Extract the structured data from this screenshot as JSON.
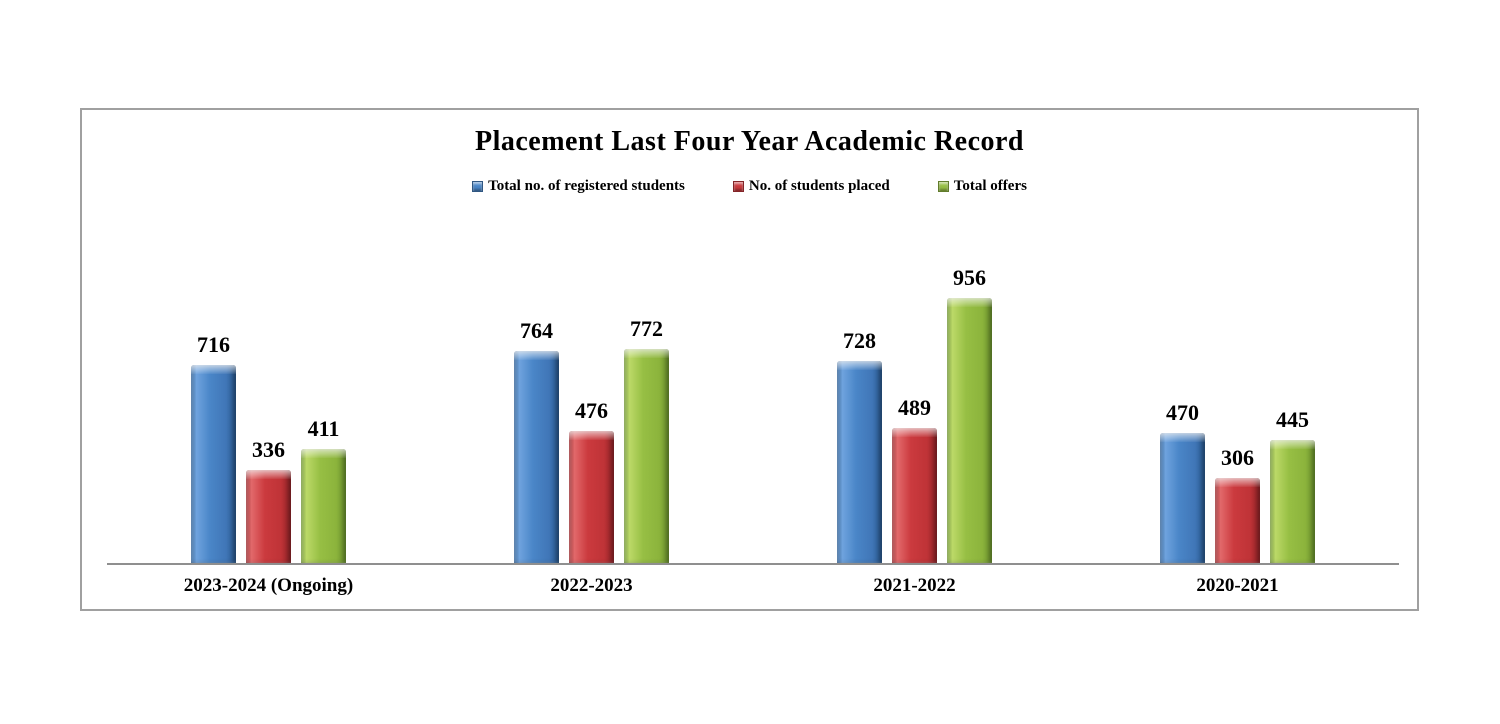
{
  "chart_data": {
    "type": "bar",
    "title": "Placement Last Four Year Academic Record",
    "categories": [
      "2023-2024 (Ongoing)",
      "2022-2023",
      "2021-2022",
      "2020-2021"
    ],
    "series": [
      {
        "name": "Total no. of registered students",
        "color": "#4A86C8",
        "values": [
          716,
          764,
          728,
          470
        ]
      },
      {
        "name": "No. of students placed",
        "color": "#CB3A3E",
        "values": [
          336,
          476,
          489,
          306
        ]
      },
      {
        "name": "Total offers",
        "color": "#97BF44",
        "values": [
          411,
          772,
          956,
          445
        ]
      }
    ],
    "ylim": [
      0,
      1636
    ],
    "grid": false,
    "legend_position": "top-center",
    "data_labels": true,
    "xlabel": "",
    "ylabel": "",
    "axis_line_color": "#8F8F8F",
    "frame_border_color": "#A0A0A0",
    "text_color": "#000000"
  }
}
